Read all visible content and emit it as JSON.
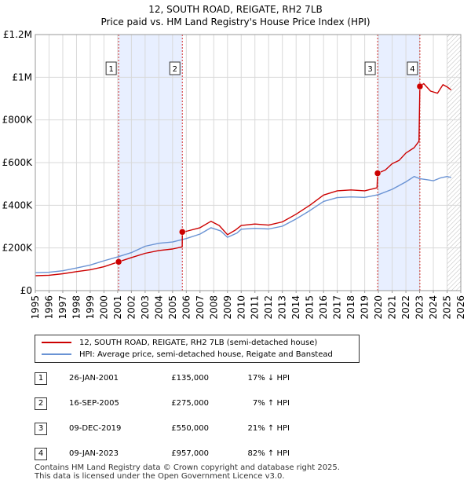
{
  "title": {
    "line1": "12, SOUTH ROAD, REIGATE, RH2 7LB",
    "line2": "Price paid vs. HM Land Registry's House Price Index (HPI)"
  },
  "colors": {
    "red": "#cc0000",
    "blue": "#6a93d4",
    "shade": "#e8efff"
  },
  "legend": {
    "property": "12, SOUTH ROAD, REIGATE, RH2 7LB (semi-detached house)",
    "hpi": "HPI: Average price, semi-detached house, Reigate and Banstead"
  },
  "sales": [
    {
      "num": "1",
      "date": "26-JAN-2001",
      "price": "£135,000",
      "hpi": "17% ↓ HPI"
    },
    {
      "num": "2",
      "date": "16-SEP-2005",
      "price": "£275,000",
      "hpi": "7% ↑ HPI"
    },
    {
      "num": "3",
      "date": "09-DEC-2019",
      "price": "£550,000",
      "hpi": "21% ↑ HPI"
    },
    {
      "num": "4",
      "date": "09-JAN-2023",
      "price": "£957,000",
      "hpi": "82% ↑ HPI"
    }
  ],
  "footer": {
    "line1": "Contains HM Land Registry data © Crown copyright and database right 2025.",
    "line2": "This data is licensed under the Open Government Licence v3.0."
  },
  "chart_data": {
    "type": "line",
    "title": "12, SOUTH ROAD, REIGATE, RH2 7LB",
    "subtitle": "Price paid vs. HM Land Registry's House Price Index (HPI)",
    "xlabel": "",
    "ylabel": "",
    "xlim": [
      1995,
      2026
    ],
    "ylim": [
      0,
      1200000
    ],
    "x_ticks": [
      1995,
      1996,
      1997,
      1998,
      1999,
      2000,
      2001,
      2002,
      2003,
      2004,
      2005,
      2006,
      2007,
      2008,
      2009,
      2010,
      2011,
      2012,
      2013,
      2014,
      2015,
      2016,
      2017,
      2018,
      2019,
      2020,
      2021,
      2022,
      2023,
      2024,
      2025,
      2026
    ],
    "y_ticks": [
      {
        "value": 0,
        "label": "£0"
      },
      {
        "value": 200000,
        "label": "£200K"
      },
      {
        "value": 400000,
        "label": "£400K"
      },
      {
        "value": 600000,
        "label": "£600K"
      },
      {
        "value": 800000,
        "label": "£800K"
      },
      {
        "value": 1000000,
        "label": "£1M"
      },
      {
        "value": 1200000,
        "label": "£1.2M"
      }
    ],
    "grid": true,
    "shaded_ranges": [
      [
        2001.07,
        2005.71
      ],
      [
        2019.94,
        2023.02
      ]
    ],
    "hatched_from": 2025.0,
    "series": [
      {
        "name": "12, SOUTH ROAD, REIGATE, RH2 7LB (semi-detached house)",
        "color": "#cc0000",
        "points": [
          [
            1995,
            70000
          ],
          [
            1996,
            72000
          ],
          [
            1997,
            79000
          ],
          [
            1998,
            89000
          ],
          [
            1999,
            98000
          ],
          [
            2000,
            112000
          ],
          [
            2001.07,
            135000
          ],
          [
            2002,
            155000
          ],
          [
            2003,
            175000
          ],
          [
            2004,
            188000
          ],
          [
            2005,
            195000
          ],
          [
            2005.7,
            205000
          ],
          [
            2005.71,
            275000
          ],
          [
            2006,
            278000
          ],
          [
            2007,
            295000
          ],
          [
            2007.8,
            325000
          ],
          [
            2008.4,
            305000
          ],
          [
            2009,
            262000
          ],
          [
            2009.6,
            285000
          ],
          [
            2010,
            305000
          ],
          [
            2011,
            312000
          ],
          [
            2012,
            307000
          ],
          [
            2013,
            322000
          ],
          [
            2014,
            358000
          ],
          [
            2015,
            400000
          ],
          [
            2016,
            448000
          ],
          [
            2017,
            468000
          ],
          [
            2018,
            472000
          ],
          [
            2019,
            468000
          ],
          [
            2019.9,
            482000
          ],
          [
            2019.94,
            550000
          ],
          [
            2020.5,
            565000
          ],
          [
            2021,
            595000
          ],
          [
            2021.5,
            610000
          ],
          [
            2022,
            645000
          ],
          [
            2022.6,
            670000
          ],
          [
            2022.95,
            700000
          ],
          [
            2023.02,
            957000
          ],
          [
            2023.3,
            970000
          ],
          [
            2023.8,
            935000
          ],
          [
            2024.3,
            925000
          ],
          [
            2024.7,
            965000
          ],
          [
            2025,
            955000
          ],
          [
            2025.3,
            940000
          ]
        ]
      },
      {
        "name": "HPI: Average price, semi-detached house, Reigate and Banstead",
        "color": "#6a93d4",
        "points": [
          [
            1995,
            84000
          ],
          [
            1996,
            86000
          ],
          [
            1997,
            93000
          ],
          [
            1998,
            106000
          ],
          [
            1999,
            120000
          ],
          [
            2000,
            140000
          ],
          [
            2001,
            158000
          ],
          [
            2002,
            178000
          ],
          [
            2003,
            208000
          ],
          [
            2004,
            222000
          ],
          [
            2005,
            228000
          ],
          [
            2006,
            244000
          ],
          [
            2007,
            265000
          ],
          [
            2007.8,
            295000
          ],
          [
            2008.5,
            280000
          ],
          [
            2009,
            250000
          ],
          [
            2009.7,
            270000
          ],
          [
            2010,
            288000
          ],
          [
            2011,
            292000
          ],
          [
            2012,
            289000
          ],
          [
            2013,
            302000
          ],
          [
            2014,
            336000
          ],
          [
            2015,
            375000
          ],
          [
            2016,
            418000
          ],
          [
            2017,
            436000
          ],
          [
            2018,
            439000
          ],
          [
            2019,
            437000
          ],
          [
            2020,
            450000
          ],
          [
            2021,
            475000
          ],
          [
            2022,
            510000
          ],
          [
            2022.6,
            535000
          ],
          [
            2023,
            525000
          ],
          [
            2023.5,
            520000
          ],
          [
            2024,
            515000
          ],
          [
            2024.5,
            528000
          ],
          [
            2025,
            535000
          ],
          [
            2025.3,
            530000
          ]
        ]
      }
    ],
    "markers": [
      {
        "label": "1",
        "x": 2001.07,
        "y": 135000
      },
      {
        "label": "2",
        "x": 2005.71,
        "y": 275000
      },
      {
        "label": "3",
        "x": 2019.94,
        "y": 550000
      },
      {
        "label": "4",
        "x": 2023.02,
        "y": 957000
      }
    ]
  }
}
